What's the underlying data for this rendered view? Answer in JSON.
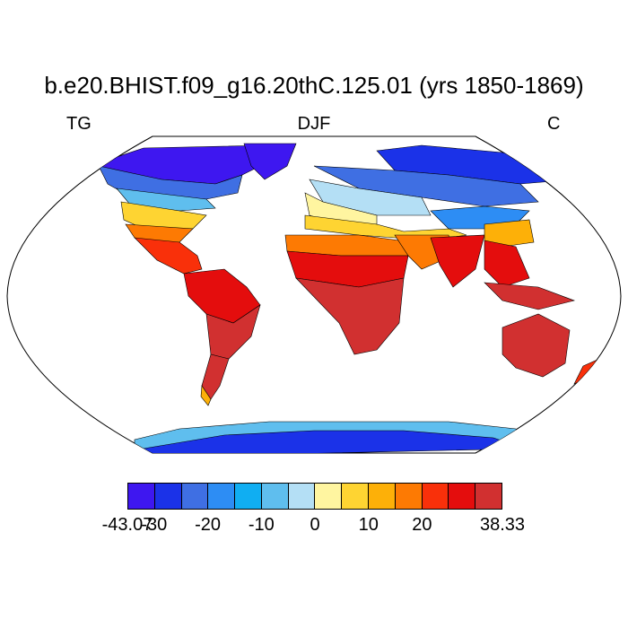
{
  "title": "b.e20.BHIST.f09_g16.20thC.125.01 (yrs 1850-1869)",
  "variable": "TG",
  "season": "DJF",
  "units": "C",
  "colorbar": {
    "colors": [
      "#3e17f0",
      "#1b32e8",
      "#3f6fe3",
      "#2d8df4",
      "#10aef2",
      "#5fbeee",
      "#b4dff5",
      "#fff5a0",
      "#fed432",
      "#fdb008",
      "#fd7a03",
      "#f9300a",
      "#e40d0d",
      "#d13030"
    ],
    "tick_labels": [
      "-43.07",
      "-30",
      "-20",
      "-10",
      "0",
      "10",
      "20",
      "38.33"
    ],
    "min": -43.07,
    "max": 38.33
  }
}
